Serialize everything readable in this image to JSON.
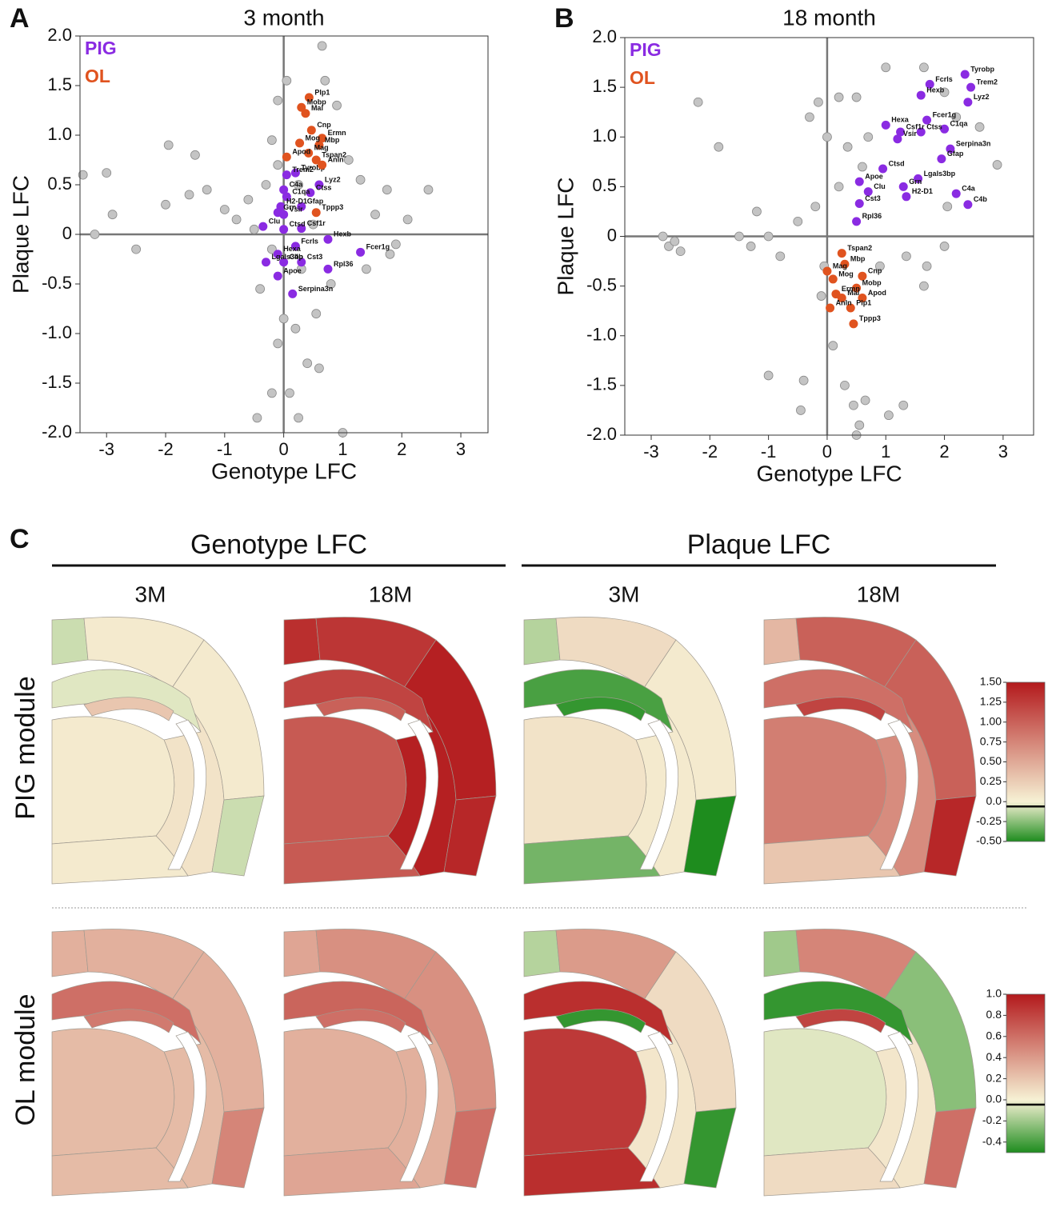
{
  "chart_data": [
    {
      "type": "scatter",
      "panel": "A",
      "title": "3 month",
      "xlabel": "Genotype LFC",
      "ylabel": "Plaque LFC",
      "xlim": [
        -3.45,
        3.46
      ],
      "ylim": [
        -2,
        2
      ],
      "xticks": [
        -3,
        -2,
        -1,
        0,
        1,
        2,
        3
      ],
      "yticks": [
        {
          "value": 2,
          "label": "2.0"
        },
        1.5,
        {
          "value": 1,
          "label": "1.0"
        },
        0.5,
        0,
        -0.5,
        {
          "value": -1,
          "label": "-1.0"
        },
        -1.5,
        {
          "value": -2,
          "label": "-2.0"
        }
      ],
      "series": [
        {
          "color": "#c4c4c4",
          "x": [
            -3.4,
            -3.0,
            -2.9,
            -3.2,
            -2.5,
            -1.95,
            -1.5,
            -2.0,
            -1.6,
            -1.3,
            -1.0,
            -0.8,
            -0.6,
            -0.5,
            -0.3,
            -0.2,
            -0.1,
            0.05,
            0.65,
            0.7,
            0.9,
            1.1,
            1.3,
            1.55,
            1.75,
            2.1,
            2.45,
            1.9,
            1.8,
            1.4,
            0.2,
            0.0,
            -0.1,
            0.4,
            0.6,
            0.1,
            -0.45,
            -0.2,
            0.25,
            1.0,
            0.55,
            -0.4,
            0.3,
            0.8,
            -0.2,
            0.25,
            0.5,
            -0.1
          ],
          "values": [
            0.6,
            0.62,
            0.2,
            0,
            -0.15,
            0.9,
            0.8,
            0.3,
            0.4,
            0.45,
            0.25,
            0.15,
            0.35,
            0.05,
            0.5,
            -0.15,
            1.35,
            1.55,
            1.9,
            1.55,
            1.3,
            0.75,
            0.55,
            0.2,
            0.45,
            0.15,
            0.45,
            -0.1,
            -0.2,
            -0.35,
            -0.95,
            -0.85,
            -1.1,
            -1.3,
            -1.35,
            -1.6,
            -1.85,
            -1.6,
            -1.85,
            -2.0,
            -0.8,
            -0.55,
            -0.35,
            -0.5,
            0.95,
            0.5,
            0.1,
            0.7
          ]
        },
        {
          "name": "PIG",
          "color": "#8a2be2",
          "labels": [
            "Tyrobp",
            "Trem2",
            "Lyz2",
            "C4a",
            "Ctss",
            "C1qa",
            "H2-D1",
            "Gfap",
            "Grn",
            "Vsir",
            "Clu",
            "Ctsd",
            "Csf1r",
            "Hexb",
            "Fcer1g",
            "Hexa",
            "Fcrls",
            "C4b",
            "Cst3",
            "Lgals3bp",
            "Rpl36",
            "Apoe",
            "Serpina3n"
          ],
          "x": [
            0.2,
            0.05,
            0.6,
            0.0,
            0.45,
            0.05,
            -0.05,
            0.3,
            -0.1,
            0.0,
            -0.35,
            0.0,
            0.3,
            0.75,
            1.3,
            -0.1,
            0.2,
            0.0,
            0.3,
            -0.3,
            0.75,
            -0.1,
            0.15
          ],
          "values": [
            0.62,
            0.6,
            0.5,
            0.45,
            0.42,
            0.38,
            0.28,
            0.28,
            0.22,
            0.2,
            0.08,
            0.05,
            0.06,
            -0.05,
            -0.18,
            -0.2,
            -0.12,
            -0.28,
            -0.28,
            -0.28,
            -0.35,
            -0.42,
            -0.6
          ]
        },
        {
          "name": "OL",
          "color": "#e0531f",
          "labels": [
            "Plp1",
            "Mal",
            "Mobp",
            "Cnp",
            "Ermn",
            "Mbp",
            "Mog",
            "Mag",
            "Apod",
            "Tspan2",
            "Anln",
            "Tppp3"
          ],
          "x": [
            0.43,
            0.37,
            0.3,
            0.47,
            0.65,
            0.6,
            0.27,
            0.42,
            0.05,
            0.55,
            0.65,
            0.55
          ],
          "values": [
            1.38,
            1.22,
            1.28,
            1.05,
            0.97,
            0.9,
            0.92,
            0.82,
            0.78,
            0.75,
            0.7,
            0.22
          ]
        }
      ]
    },
    {
      "type": "scatter",
      "panel": "B",
      "title": "18 month",
      "xlabel": "Genotype LFC",
      "ylabel": "Plaque LFC",
      "xlim": [
        -3.45,
        3.52
      ],
      "ylim": [
        -2,
        2
      ],
      "xticks": [
        -3,
        -2,
        -1,
        0,
        1,
        2,
        3
      ],
      "yticks": [
        {
          "value": 2,
          "label": "2.0"
        },
        1.5,
        {
          "value": 1,
          "label": "1.0"
        },
        0.5,
        0,
        -0.5,
        {
          "value": -1,
          "label": "-1.0"
        },
        -1.5,
        {
          "value": -2,
          "label": "-2.0"
        }
      ],
      "series": [
        {
          "color": "#c4c4c4",
          "x": [
            -2.7,
            -2.6,
            -2.8,
            -2.5,
            -2.2,
            -1.85,
            -1.2,
            -1.5,
            -1.3,
            -1.0,
            -0.8,
            -0.5,
            -0.3,
            -0.15,
            0.0,
            0.2,
            0.5,
            0.7,
            1.0,
            1.65,
            2.0,
            2.2,
            2.6,
            2.9,
            2.05,
            2.0,
            1.7,
            1.35,
            1.65,
            0.9,
            -0.4,
            -1.0,
            -0.45,
            0.3,
            0.45,
            0.65,
            0.55,
            1.05,
            1.3,
            0.5,
            -0.1,
            0.2,
            -0.2,
            0.35,
            -0.05,
            0.6,
            0.1
          ],
          "values": [
            -0.1,
            -0.05,
            0.0,
            -0.15,
            1.35,
            0.9,
            0.25,
            0.0,
            -0.1,
            0.0,
            -0.2,
            0.15,
            1.2,
            1.35,
            1.0,
            1.4,
            1.4,
            1.0,
            1.7,
            1.7,
            1.45,
            1.2,
            1.1,
            0.72,
            0.3,
            -0.1,
            -0.3,
            -0.2,
            -0.5,
            -0.3,
            -1.45,
            -1.4,
            -1.75,
            -1.5,
            -1.7,
            -1.65,
            -1.9,
            -1.8,
            -1.7,
            -2.0,
            -0.6,
            0.5,
            0.3,
            0.9,
            -0.3,
            0.7,
            -1.1
          ]
        },
        {
          "name": "PIG",
          "color": "#8a2be2",
          "labels": [
            "Tyrobp",
            "Trem2",
            "Fcrls",
            "Lyz2",
            "Hexb",
            "Hexa",
            "Fcer1g",
            "Csf1r",
            "C1qa",
            "Ctss",
            "Vsir",
            "Serpina3n",
            "Gfap",
            "Ctsd",
            "Lgals3bp",
            "Apoe",
            "Clu",
            "Grn",
            "H2-D1",
            "C4a",
            "C4b",
            "Cst3",
            "Rpl36"
          ],
          "x": [
            2.35,
            2.45,
            1.75,
            2.4,
            1.6,
            1.0,
            1.7,
            1.25,
            2.0,
            1.6,
            1.2,
            2.1,
            1.95,
            0.95,
            1.55,
            0.55,
            0.7,
            1.3,
            1.35,
            2.2,
            2.4,
            0.55,
            0.5
          ],
          "values": [
            1.63,
            1.5,
            1.53,
            1.35,
            1.42,
            1.12,
            1.17,
            1.05,
            1.08,
            1.05,
            0.98,
            0.88,
            0.78,
            0.68,
            0.58,
            0.55,
            0.45,
            0.5,
            0.4,
            0.43,
            0.32,
            0.33,
            0.15
          ]
        },
        {
          "name": "OL",
          "color": "#e0531f",
          "labels": [
            "Tspan2",
            "Mbp",
            "Mag",
            "Cnp",
            "Mog",
            "Mobp",
            "Ermn",
            "Apod",
            "Mal",
            "Anln",
            "Plp1",
            "Tppp3"
          ],
          "x": [
            0.25,
            0.3,
            0.0,
            0.6,
            0.1,
            0.5,
            0.15,
            0.6,
            0.25,
            0.05,
            0.4,
            0.45
          ],
          "values": [
            -0.17,
            -0.28,
            -0.35,
            -0.4,
            -0.43,
            -0.52,
            -0.58,
            -0.62,
            -0.62,
            -0.72,
            -0.72,
            -0.88
          ]
        }
      ]
    },
    {
      "type": "brain_map",
      "panel": "C",
      "column_groups": [
        "Genotype LFC",
        "Plaque LFC"
      ],
      "columns": [
        "3M",
        "18M",
        "3M",
        "18M"
      ],
      "colormap": [
        "#1e8c1e",
        "#f6f1d4",
        "#b3191c"
      ],
      "rows": [
        {
          "label": "PIG module",
          "colorbar": {
            "lim": [
              -0.5,
              1.5
            ],
            "ticks": [
              {
                "value": 1.5,
                "label": "1.50"
              },
              1.25,
              {
                "value": 1,
                "label": "1.00"
              },
              0.75,
              {
                "value": 0.5,
                "label": "0.50"
              },
              0.25,
              {
                "value": 0,
                "label": "0.0"
              },
              -0.25,
              {
                "value": -0.5,
                "label": "-0.50"
              }
            ]
          },
          "maps": [
            {
              "values": [
                -0.1,
                0.05,
                0.05,
                -0.1,
                -0.05,
                0.3,
                0.05,
                0.05,
                0.1
              ]
            },
            {
              "values": [
                1.35,
                1.3,
                1.45,
                1.4,
                1.2,
                1.0,
                1.05,
                1.05,
                1.45
              ]
            },
            {
              "values": [
                -0.15,
                0.15,
                0.05,
                -0.5,
                -0.4,
                -0.45,
                0.1,
                -0.3,
                0.05
              ]
            },
            {
              "values": [
                0.4,
                1.0,
                1.0,
                1.4,
                0.9,
                1.2,
                0.8,
                0.3,
                0.7
              ]
            }
          ]
        },
        {
          "label": "OL module",
          "colorbar": {
            "lim": [
              -0.5,
              1.0
            ],
            "ticks": [
              {
                "value": 1,
                "label": "1.0"
              },
              0.8,
              0.6,
              0.4,
              0.2,
              {
                "value": 0,
                "label": "0.0"
              },
              -0.2,
              -0.4
            ]
          },
          "maps": [
            {
              "values": [
                0.3,
                0.3,
                0.3,
                0.5,
                0.6,
                0.55,
                0.25,
                0.25,
                0.25
              ]
            },
            {
              "values": [
                0.35,
                0.45,
                0.45,
                0.6,
                0.65,
                0.6,
                0.3,
                0.35,
                0.3
              ]
            },
            {
              "values": [
                -0.15,
                0.4,
                0.1,
                -0.45,
                0.9,
                -0.45,
                0.85,
                0.9,
                0.05
              ]
            },
            {
              "values": [
                -0.2,
                0.5,
                -0.25,
                0.6,
                -0.45,
                0.8,
                -0.05,
                0.1,
                0.05
              ]
            }
          ]
        }
      ]
    }
  ]
}
